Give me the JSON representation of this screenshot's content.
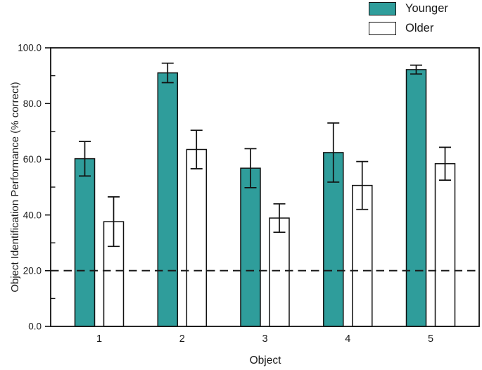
{
  "legend": {
    "items": [
      {
        "label": "Younger",
        "swatch_color": "#2f9d9b",
        "swatch_border": "#111111"
      },
      {
        "label": "Older",
        "swatch_color": "#ffffff",
        "swatch_border": "#111111"
      }
    ]
  },
  "chart_data": {
    "type": "bar",
    "title": "",
    "xlabel": "Object",
    "ylabel": "Object Identification Performance (% correct)",
    "categories": [
      "1",
      "2",
      "3",
      "4",
      "5"
    ],
    "series": [
      {
        "name": "Younger",
        "color": "#2f9d9b",
        "edge_color": "#111111",
        "values": [
          60.2,
          91.0,
          56.8,
          62.4,
          92.2
        ],
        "errors": [
          6.2,
          3.5,
          7.0,
          10.6,
          1.6
        ]
      },
      {
        "name": "Older",
        "color": "#ffffff",
        "edge_color": "#111111",
        "values": [
          37.6,
          63.5,
          38.9,
          50.6,
          58.4
        ],
        "errors": [
          8.9,
          6.9,
          5.1,
          8.6,
          5.9
        ]
      }
    ],
    "ylim": [
      0,
      100
    ],
    "y_major_ticks": [
      0,
      20,
      40,
      60,
      80,
      100
    ],
    "y_major_tick_labels": [
      "0.0",
      "20.0",
      "40.0",
      "60.0",
      "80.0",
      "100.0"
    ],
    "y_minor_ticks": [
      10,
      30,
      50,
      70,
      90
    ],
    "reference_line": {
      "y": 20,
      "style": "dashed",
      "color": "#1a1a1a"
    },
    "legend_position": "top-right",
    "grid": false,
    "axis_color": "#111111",
    "text_color": "#1a1a1a"
  }
}
